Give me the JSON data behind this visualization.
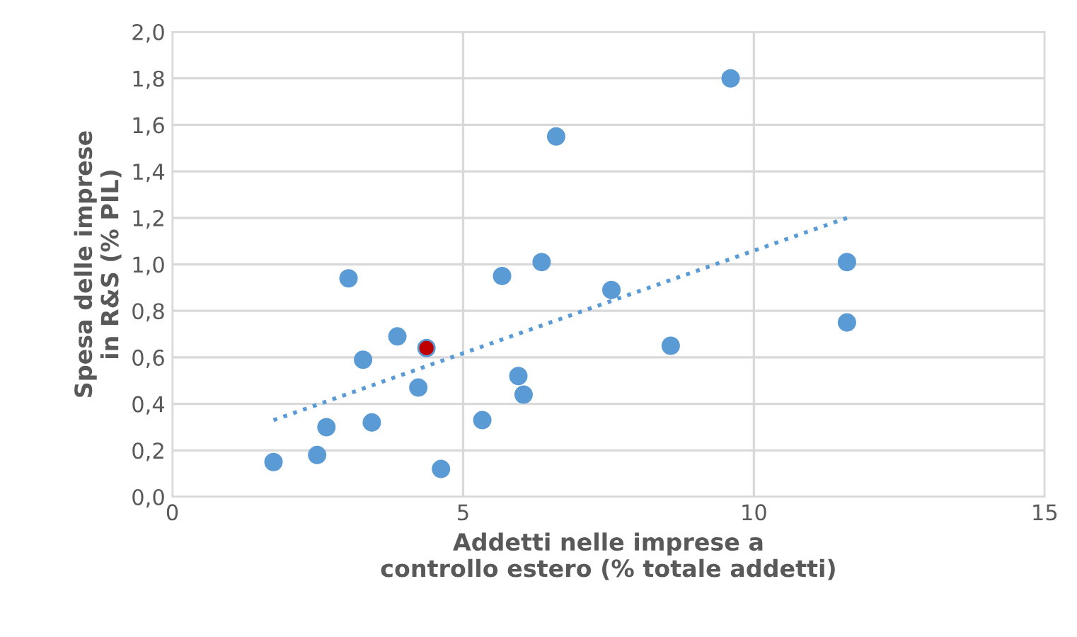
{
  "chart_data": {
    "type": "scatter",
    "xlabel": "Addetti nelle imprese a\ncontrollo estero (% totale addetti)",
    "ylabel": "Spesa delle imprese\nin R&S (% PIL)",
    "series": [
      {
        "marker": "circle",
        "color": "#5b9bd5",
        "x": [
          1.74,
          2.49,
          2.65,
          3.03,
          3.28,
          3.43,
          3.87,
          4.23,
          4.37,
          4.62,
          5.33,
          5.67,
          5.95,
          6.04,
          6.35,
          6.6,
          7.55,
          8.57,
          9.6,
          11.6,
          11.6
        ],
        "values": [
          0.15,
          0.18,
          0.3,
          0.94,
          0.59,
          0.32,
          0.69,
          0.47,
          0.64,
          0.12,
          0.33,
          0.95,
          0.52,
          0.44,
          1.01,
          1.55,
          0.89,
          0.65,
          1.8,
          1.01,
          0.75
        ],
        "colors": [
          "#5b9bd5",
          "#5b9bd5",
          "#5b9bd5",
          "#5b9bd5",
          "#5b9bd5",
          "#5b9bd5",
          "#5b9bd5",
          "#5b9bd5",
          "#c00000",
          "#5b9bd5",
          "#5b9bd5",
          "#5b9bd5",
          "#5b9bd5",
          "#5b9bd5",
          "#5b9bd5",
          "#5b9bd5",
          "#5b9bd5",
          "#5b9bd5",
          "#5b9bd5",
          "#5b9bd5",
          "#5b9bd5"
        ]
      },
      {
        "type": "line",
        "color": "#5b9bd5",
        "line_style": "dotted",
        "x": [
          1.74,
          11.6
        ],
        "values": [
          0.33,
          1.2
        ]
      }
    ],
    "xlim": [
      0,
      15
    ],
    "xticks": [
      0,
      5,
      10,
      15
    ],
    "ylim": [
      0,
      2.0
    ],
    "yticks": [
      {
        "value": 0,
        "label": "0,0"
      },
      {
        "value": 0.2,
        "label": "0,2"
      },
      {
        "value": 0.4,
        "label": "0,4"
      },
      {
        "value": 0.6,
        "label": "0,6"
      },
      {
        "value": 0.8,
        "label": "0,8"
      },
      {
        "value": 1.0,
        "label": "1,0"
      },
      {
        "value": 1.2,
        "label": "1,2"
      },
      {
        "value": 1.4,
        "label": "1,4"
      },
      {
        "value": 1.6,
        "label": "1,6"
      },
      {
        "value": 1.8,
        "label": "1,8"
      },
      {
        "value": 2.0,
        "label": "2,0"
      }
    ],
    "grid": true
  }
}
